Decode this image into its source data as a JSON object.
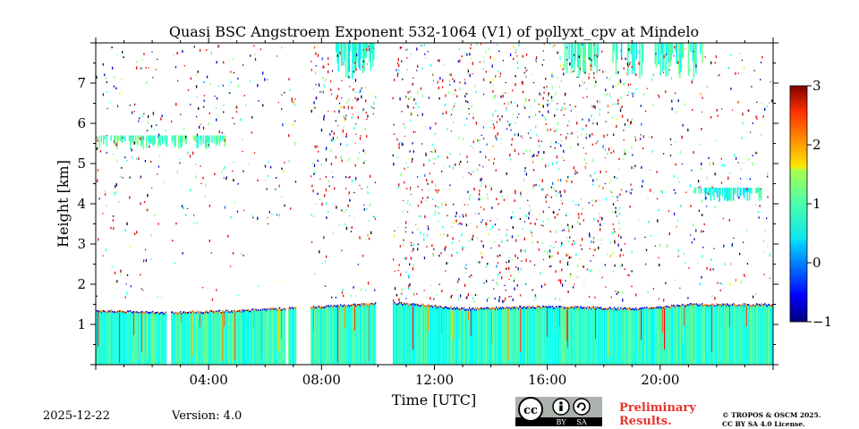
{
  "chart_data": {
    "type": "heatmap",
    "title": "Quasi BSC Angstroem Exponent 532-1064 (V1) of pollyxt_cpv at Mindelo",
    "xlabel": "Time [UTC]",
    "ylabel": "Height [km]",
    "xlim": [
      0,
      24
    ],
    "ylim": [
      0,
      8
    ],
    "x_ticks": [
      4,
      8,
      12,
      16,
      20
    ],
    "x_tick_labels": [
      "04:00",
      "08:00",
      "12:00",
      "16:00",
      "20:00"
    ],
    "y_ticks": [
      1,
      2,
      3,
      4,
      5,
      6,
      7
    ],
    "y_tick_labels": [
      "1",
      "2",
      "3",
      "4",
      "5",
      "6",
      "7"
    ],
    "colorbar": {
      "vmin": -1,
      "vmax": 3,
      "ticks": [
        -1,
        0,
        1,
        2,
        3
      ],
      "tick_labels": [
        "−1",
        "0",
        "1",
        "2",
        "3"
      ],
      "colormap": "jet"
    },
    "features": {
      "boundary_layer_top_km": [
        [
          0,
          1.35
        ],
        [
          2.5,
          1.3
        ],
        [
          5,
          1.35
        ],
        [
          8,
          1.45
        ],
        [
          10.5,
          1.55
        ],
        [
          13,
          1.4
        ],
        [
          16,
          1.45
        ],
        [
          19,
          1.4
        ],
        [
          21,
          1.5
        ],
        [
          24,
          1.5
        ]
      ],
      "boundary_layer_typical_value": 0.7,
      "data_gaps_hours": [
        [
          2.5,
          2.65
        ],
        [
          6.7,
          6.8
        ],
        [
          7.1,
          7.6
        ],
        [
          9.9,
          10.5
        ]
      ],
      "high_cloud_layers": [
        {
          "t_start": 0.1,
          "t_end": 4.6,
          "height_km": 5.6,
          "value": 0.8
        },
        {
          "t_start": 8.5,
          "t_end": 9.9,
          "height_km": 7.6,
          "value": 0.6
        },
        {
          "t_start": 16.6,
          "t_end": 17.8,
          "height_km": 7.4,
          "value": 0.7
        },
        {
          "t_start": 18.3,
          "t_end": 19.4,
          "height_km": 7.0,
          "value": 0.6
        },
        {
          "t_start": 19.8,
          "t_end": 21.5,
          "height_km": 7.2,
          "value": 0.7
        },
        {
          "t_start": 21.2,
          "t_end": 23.6,
          "height_km": 4.3,
          "value": 0.6
        }
      ]
    }
  },
  "footer": {
    "date": "2025-12-22",
    "version": "Version: 4.0",
    "license_badge": {
      "cc": "cc",
      "by": "BY",
      "sa": "SA"
    },
    "preliminary": [
      "Preliminary",
      "Results."
    ],
    "copyright": [
      "© TROPOS & OSCM 2025.",
      "CC BY SA 4.0 License."
    ]
  },
  "icons": [
    "cc-license-icon",
    "by-person-icon",
    "sa-share-icon"
  ]
}
